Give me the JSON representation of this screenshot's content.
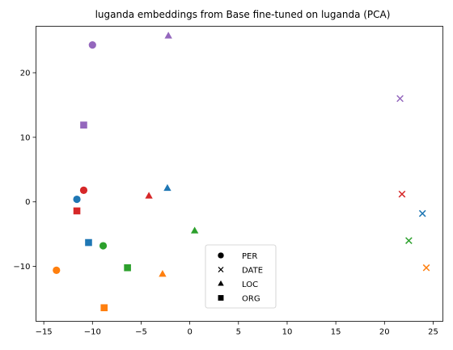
{
  "chart_data": {
    "type": "scatter",
    "title": "luganda embeddings from Base fine-tuned on luganda (PCA)",
    "xlabel": "",
    "ylabel": "",
    "xlim": [
      -15.8,
      26.0
    ],
    "ylim": [
      -18.5,
      27.2
    ],
    "xticks": [
      -15,
      -10,
      -5,
      0,
      5,
      10,
      15,
      20,
      25
    ],
    "yticks": [
      -10,
      0,
      10,
      20
    ],
    "grid": false,
    "legend_position": "bottom-center",
    "legend": [
      {
        "label": "PER",
        "marker": "circle"
      },
      {
        "label": "DATE",
        "marker": "x"
      },
      {
        "label": "LOC",
        "marker": "triangle"
      },
      {
        "label": "ORG",
        "marker": "square"
      }
    ],
    "points": [
      {
        "x": -11.6,
        "y": 0.4,
        "marker": "circle",
        "color": "#1f77b4"
      },
      {
        "x": -13.7,
        "y": -10.6,
        "marker": "circle",
        "color": "#ff7f0e"
      },
      {
        "x": -8.9,
        "y": -6.8,
        "marker": "circle",
        "color": "#2ca02c"
      },
      {
        "x": -10.9,
        "y": 1.8,
        "marker": "circle",
        "color": "#d62728"
      },
      {
        "x": -10.0,
        "y": 24.3,
        "marker": "circle",
        "color": "#9467bd"
      },
      {
        "x": 23.9,
        "y": -1.8,
        "marker": "x",
        "color": "#1f77b4"
      },
      {
        "x": 24.3,
        "y": -10.2,
        "marker": "x",
        "color": "#ff7f0e"
      },
      {
        "x": 22.5,
        "y": -6.0,
        "marker": "x",
        "color": "#2ca02c"
      },
      {
        "x": 21.8,
        "y": 1.2,
        "marker": "x",
        "color": "#d62728"
      },
      {
        "x": 21.6,
        "y": 16.0,
        "marker": "x",
        "color": "#9467bd"
      },
      {
        "x": -2.3,
        "y": 2.1,
        "marker": "triangle",
        "color": "#1f77b4"
      },
      {
        "x": -2.8,
        "y": -11.2,
        "marker": "triangle",
        "color": "#ff7f0e"
      },
      {
        "x": 0.5,
        "y": -4.5,
        "marker": "triangle",
        "color": "#2ca02c"
      },
      {
        "x": -4.2,
        "y": 0.9,
        "marker": "triangle",
        "color": "#d62728"
      },
      {
        "x": -2.2,
        "y": 25.7,
        "marker": "triangle",
        "color": "#9467bd"
      },
      {
        "x": -10.4,
        "y": -6.3,
        "marker": "square",
        "color": "#1f77b4"
      },
      {
        "x": -8.8,
        "y": -16.4,
        "marker": "square",
        "color": "#ff7f0e"
      },
      {
        "x": -6.4,
        "y": -10.2,
        "marker": "square",
        "color": "#2ca02c"
      },
      {
        "x": -11.6,
        "y": -1.4,
        "marker": "square",
        "color": "#d62728"
      },
      {
        "x": -10.9,
        "y": 11.9,
        "marker": "square",
        "color": "#9467bd"
      }
    ]
  }
}
